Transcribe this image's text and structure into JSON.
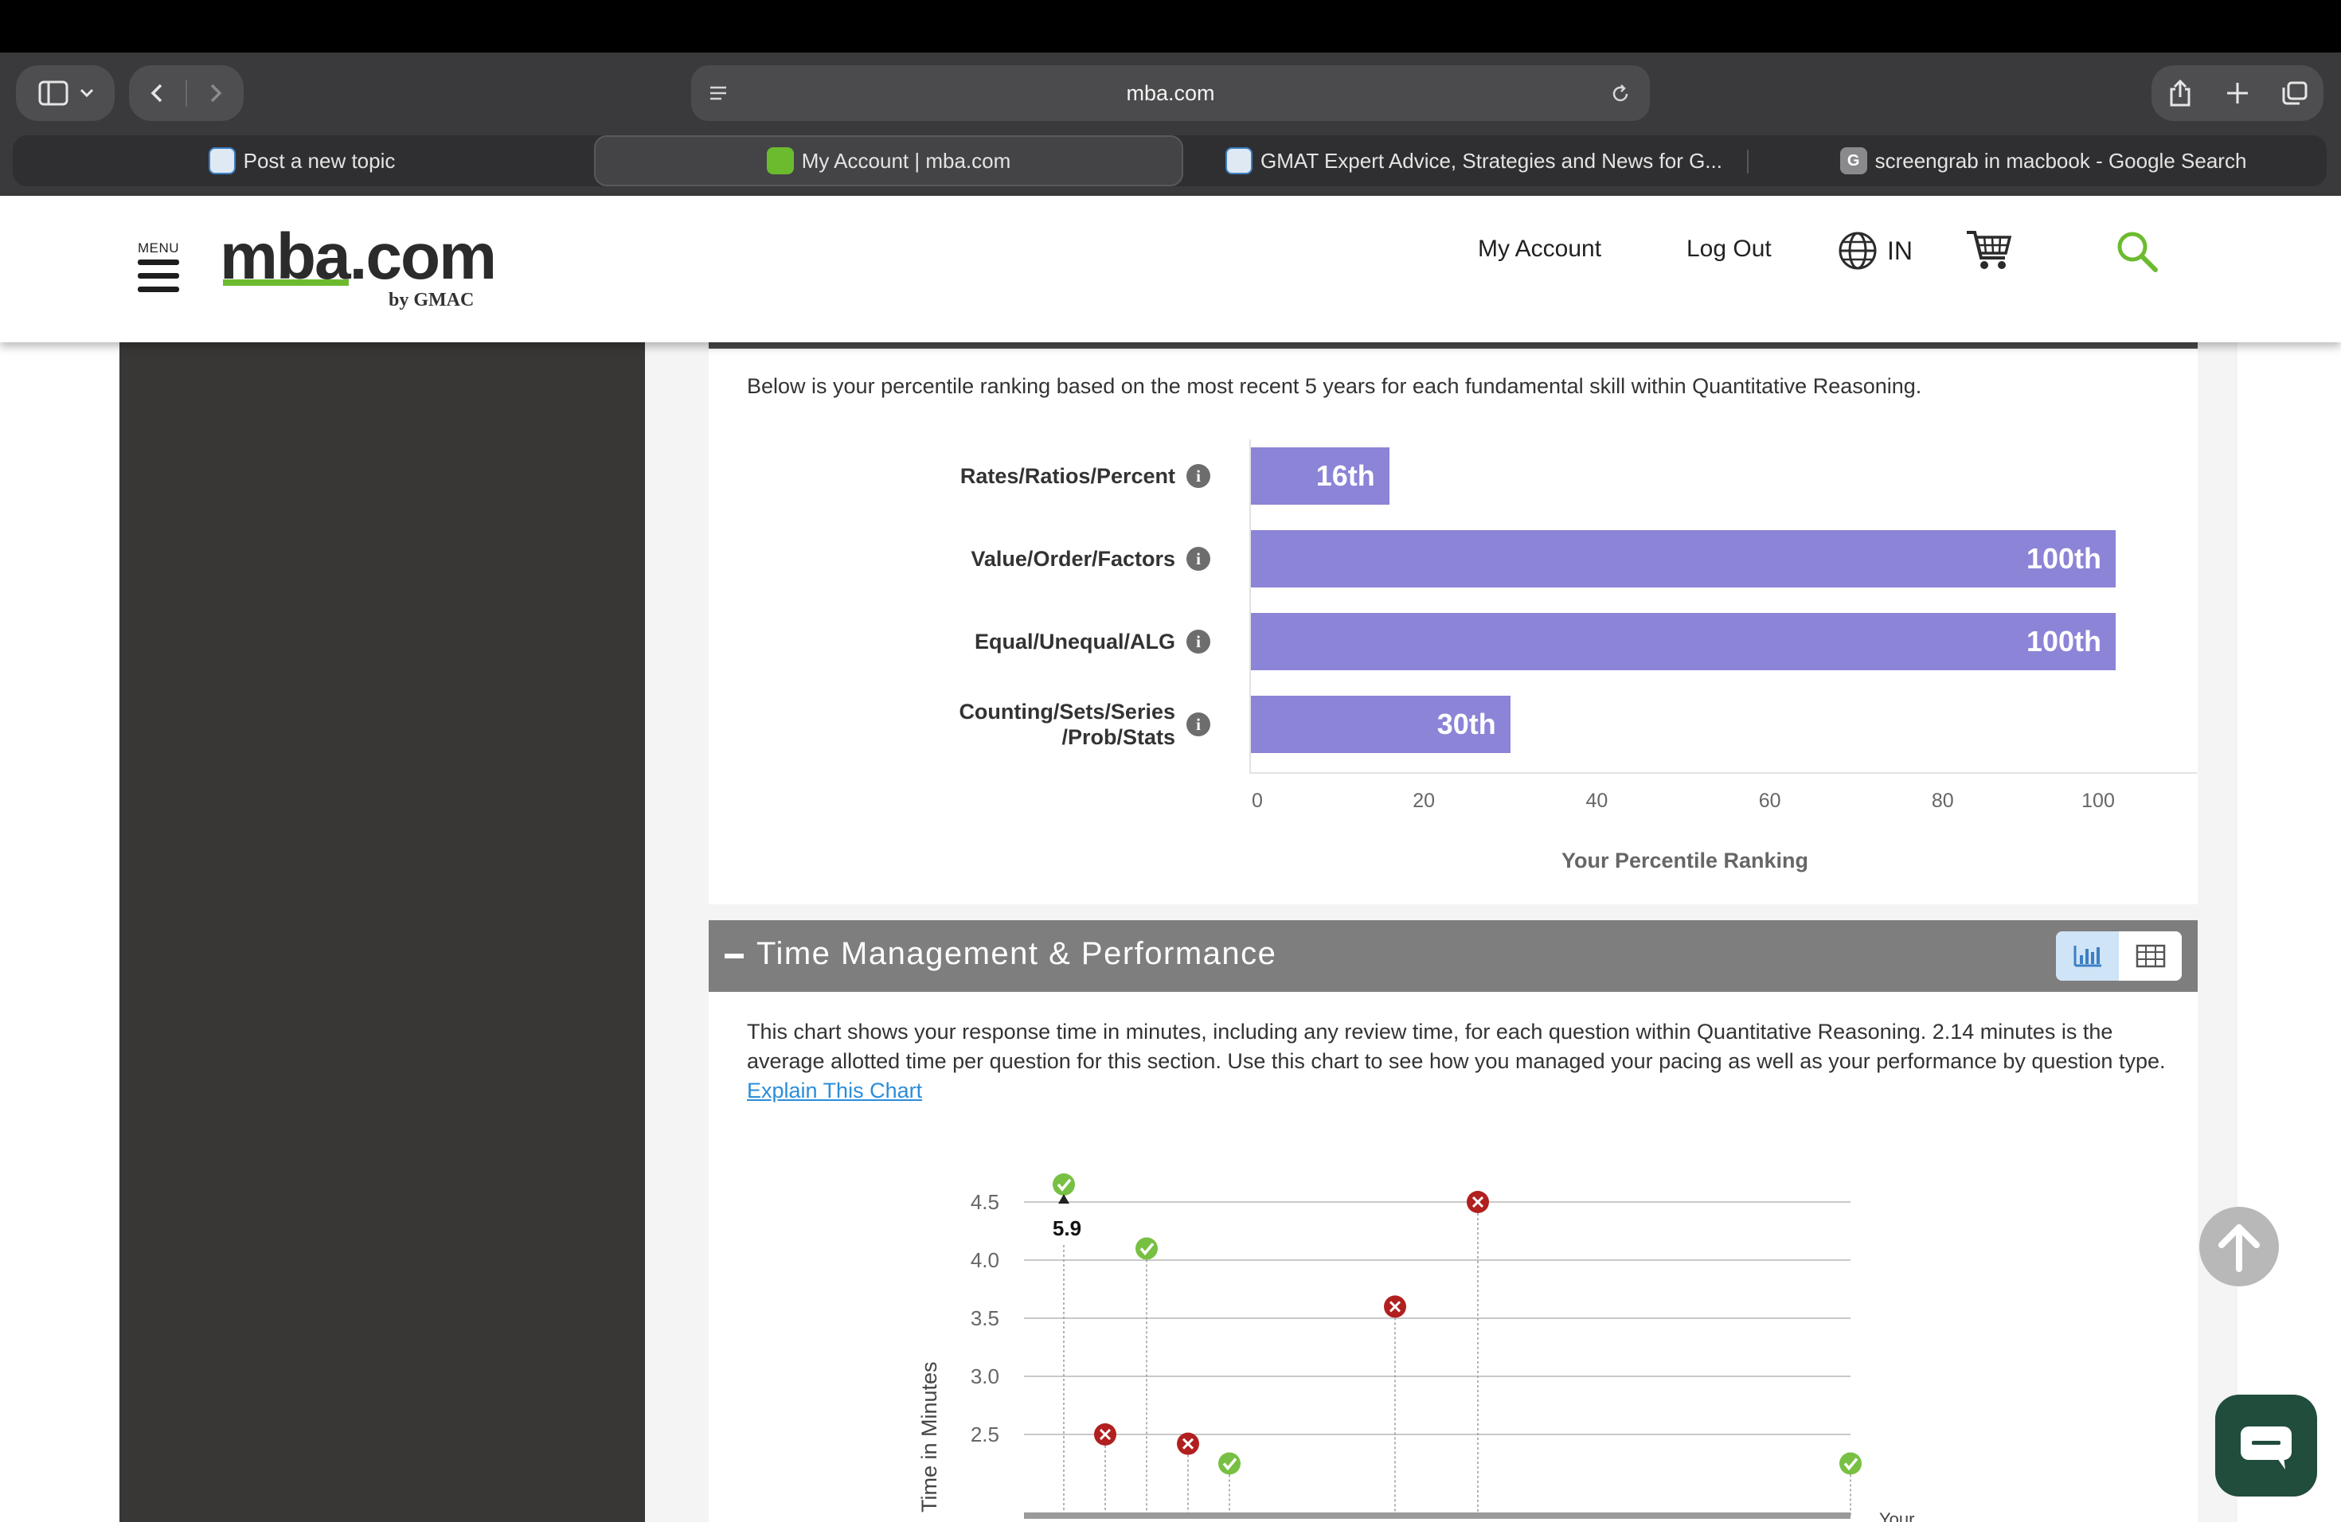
{
  "browser": {
    "url": "mba.com",
    "tabs": [
      {
        "label": "Post a new topic",
        "active": false
      },
      {
        "label": "My Account | mba.com",
        "active": true
      },
      {
        "label": "GMAT Expert Advice, Strategies and News for G...",
        "active": false
      },
      {
        "label": "screengrab in macbook - Google Search",
        "active": false
      }
    ]
  },
  "header": {
    "menu_label": "MENU",
    "logo": {
      "mba": "mba",
      "dotcom": ".com",
      "sub": "by GMAC"
    },
    "nav": {
      "my_account": "My Account",
      "log_out": "Log Out",
      "region": "IN"
    }
  },
  "skills_panel": {
    "intro": "Below is your percentile ranking based on the most recent 5 years for each fundamental skill within Quantitative Reasoning."
  },
  "time_panel": {
    "title": "Time Management & Performance",
    "description": "This chart shows your response time in minutes, including any review time, for each question within Quantitative Reasoning. 2.14 minutes is the average allotted time per question for this section. Use this chart to see how you managed your pacing as well as your performance by question type.",
    "explain_link": "Explain This Chart",
    "colors": {
      "correct": "#78c043",
      "incorrect": "#b11f1f"
    }
  },
  "chart_data": [
    {
      "type": "bar",
      "orientation": "horizontal",
      "categories": [
        "Rates/Ratios/Percent",
        "Value/Order/Factors",
        "Equal/Unequal/ALG",
        "Counting/Sets/Series /Prob/Stats"
      ],
      "values": [
        16,
        100,
        100,
        30
      ],
      "value_labels": [
        "16th",
        "100th",
        "100th",
        "30th"
      ],
      "xlabel": "Your Percentile Ranking",
      "xlim": [
        0,
        100
      ],
      "xticks": [
        0,
        20,
        40,
        60,
        80,
        100
      ],
      "color": "#8b84d7"
    },
    {
      "type": "scatter",
      "ylabel": "Time in Minutes",
      "xlabel": "Your",
      "yticks": [
        2.5,
        3.0,
        3.5,
        4.0,
        4.5
      ],
      "ylim_visible": [
        2.2,
        4.7
      ],
      "annotation": "5.9",
      "points": [
        {
          "q": 1,
          "y": 5.9,
          "result": "correct",
          "clipped": true
        },
        {
          "q": 2,
          "y": 2.5,
          "result": "incorrect"
        },
        {
          "q": 3,
          "y": 4.1,
          "result": "correct"
        },
        {
          "q": 4,
          "y": 2.42,
          "result": "incorrect"
        },
        {
          "q": 5,
          "y": 2.25,
          "result": "correct"
        },
        {
          "q": 9,
          "y": 3.6,
          "result": "incorrect"
        },
        {
          "q": 11,
          "y": 4.5,
          "result": "incorrect"
        },
        {
          "q": 20,
          "y": 2.25,
          "result": "correct"
        }
      ]
    }
  ]
}
